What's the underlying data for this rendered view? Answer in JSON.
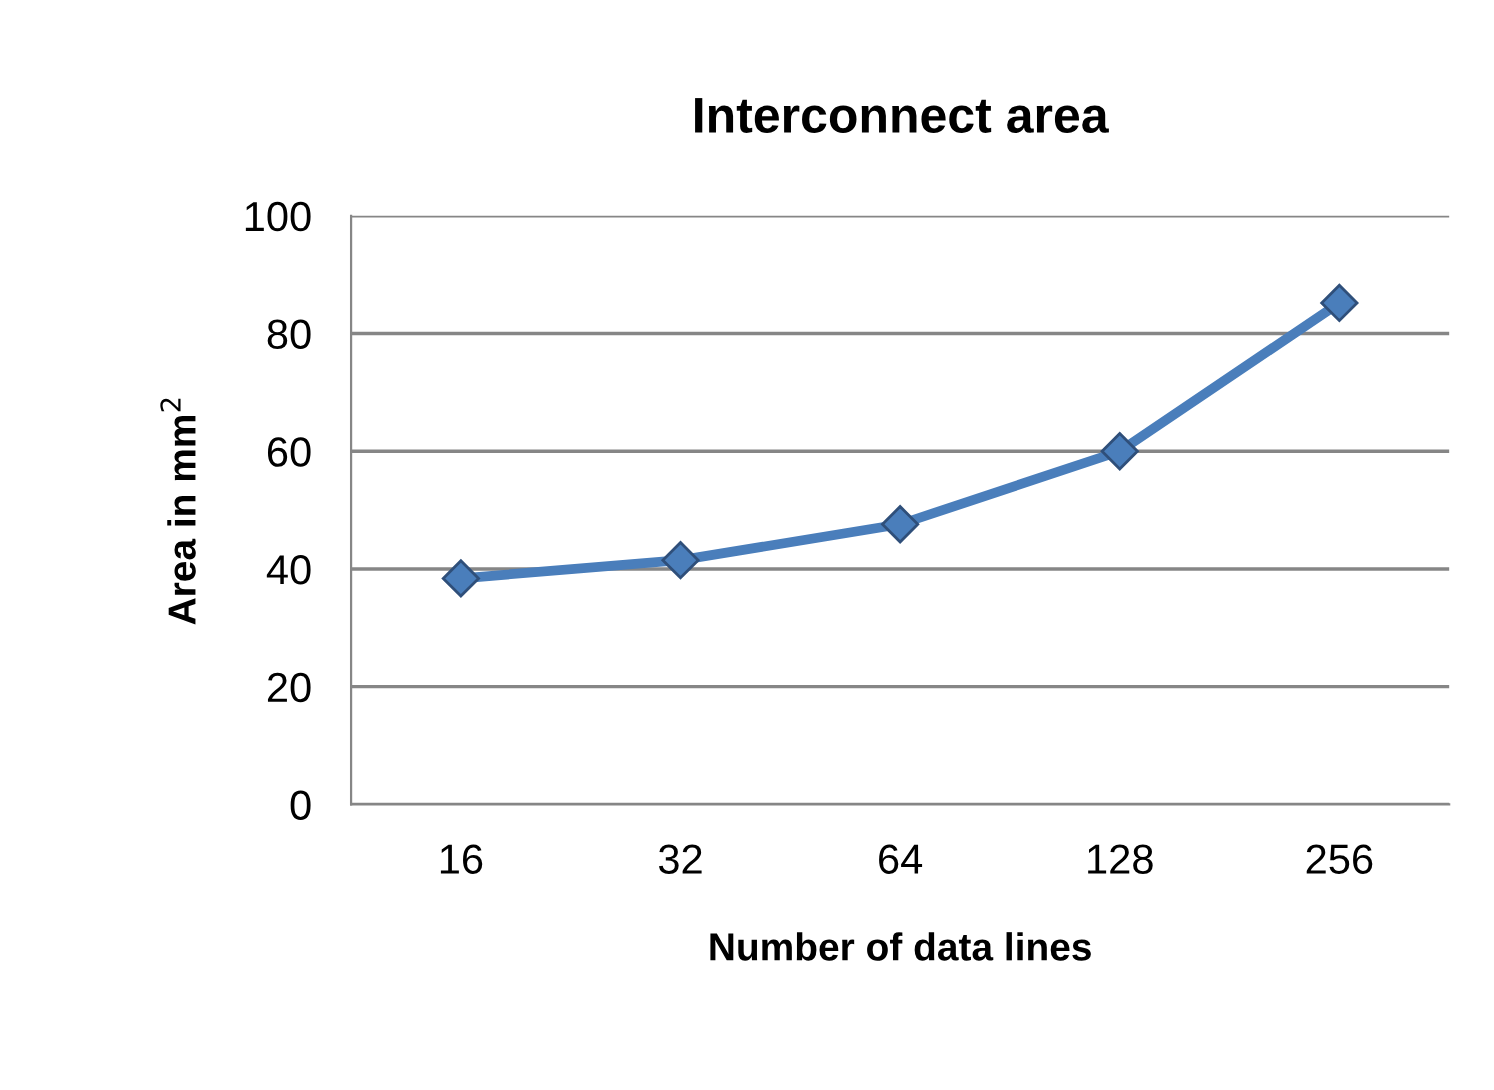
{
  "chart_data": {
    "type": "line",
    "title": "Interconnect area",
    "xlabel": "Number of data lines",
    "ylabel": "Area in mm$^{2}$",
    "categories": [
      "16",
      "32",
      "64",
      "128",
      "256"
    ],
    "series": [
      {
        "color": "#4a7ebb",
        "values": [
          38.4,
          41.5,
          47.6,
          60,
          85.2
        ]
      }
    ],
    "ylim": [
      0,
      100
    ],
    "yticks": [
      0,
      20,
      40,
      60,
      80,
      100
    ],
    "grid": "y",
    "marker": "diamond",
    "line_style": "solid",
    "legend": false
  }
}
